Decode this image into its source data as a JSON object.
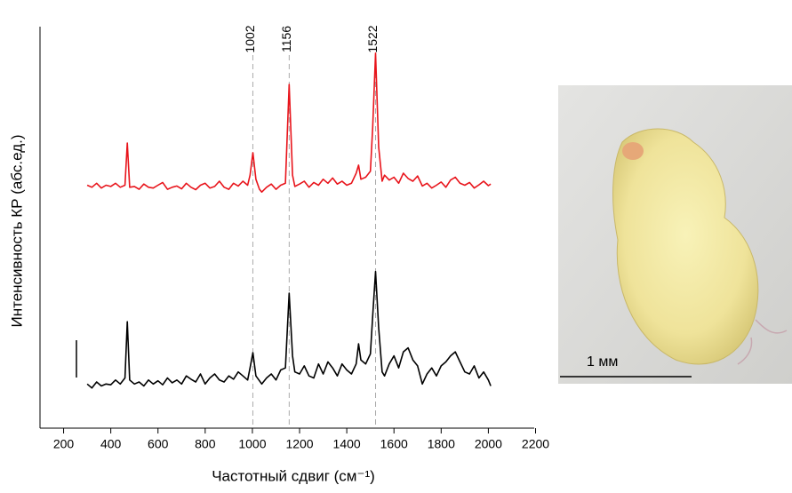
{
  "chart_data": {
    "type": "line",
    "xlabel": "Частотный сдвиг (см⁻¹)",
    "ylabel": "Интенсивность КР (абс.ед.)",
    "xlim": [
      100,
      2200
    ],
    "xticks": [
      200,
      400,
      600,
      800,
      1000,
      1200,
      1400,
      1600,
      1800,
      2000,
      2200
    ],
    "ylim": [
      0,
      100
    ],
    "grid": false,
    "peaks": [
      1002,
      1156,
      1522
    ],
    "x": [
      300,
      320,
      340,
      360,
      380,
      400,
      420,
      440,
      460,
      470,
      480,
      500,
      520,
      540,
      560,
      580,
      600,
      620,
      640,
      660,
      680,
      700,
      720,
      740,
      760,
      780,
      800,
      820,
      840,
      860,
      880,
      900,
      920,
      940,
      960,
      980,
      990,
      1002,
      1015,
      1030,
      1040,
      1060,
      1080,
      1100,
      1120,
      1140,
      1156,
      1170,
      1180,
      1200,
      1220,
      1240,
      1260,
      1280,
      1300,
      1320,
      1340,
      1360,
      1380,
      1400,
      1420,
      1440,
      1450,
      1460,
      1480,
      1500,
      1510,
      1522,
      1535,
      1550,
      1560,
      1580,
      1600,
      1620,
      1640,
      1660,
      1680,
      1700,
      1720,
      1740,
      1760,
      1780,
      1800,
      1820,
      1840,
      1860,
      1880,
      1900,
      1920,
      1940,
      1960,
      1980,
      2000,
      2010
    ],
    "series": [
      {
        "color": "#e8141b",
        "values": [
          60.5,
          60,
          61,
          59.8,
          60.5,
          60.2,
          61,
          60,
          60.5,
          71,
          60,
          60.2,
          59.5,
          60.8,
          60,
          59.8,
          60.5,
          61.2,
          59.5,
          60,
          60.3,
          59.6,
          61,
          60,
          59.4,
          60.5,
          61,
          59.8,
          60.2,
          61.5,
          60,
          59.5,
          61,
          60.3,
          61.5,
          60.5,
          63,
          68.6,
          62,
          59.5,
          58.8,
          60,
          60.8,
          59.5,
          60.5,
          61,
          85.6,
          63,
          60.2,
          60.8,
          61.5,
          60,
          61.2,
          60.5,
          62,
          61,
          62.3,
          60.8,
          61.5,
          60.5,
          61,
          63.5,
          65.5,
          62,
          62.5,
          64,
          75,
          93.4,
          70,
          61.5,
          63,
          61.8,
          62.5,
          61,
          63.5,
          62.2,
          61.5,
          62.8,
          60.3,
          61,
          59.8,
          60.5,
          61.3,
          60,
          61.8,
          62.5,
          61,
          60.5,
          61.2,
          59.8,
          60.6,
          61.5,
          60.4,
          60.8
        ]
      },
      {
        "color": "#000000",
        "values": [
          11,
          10,
          11.5,
          10.5,
          11,
          10.8,
          12,
          11,
          12.5,
          26.5,
          12,
          11,
          11.5,
          10.5,
          12,
          11,
          11.8,
          10.8,
          12.5,
          11.3,
          12,
          11,
          13,
          12.2,
          11.5,
          13.5,
          11,
          12.5,
          13.5,
          12,
          11.5,
          13,
          12.2,
          14,
          13,
          12,
          15,
          18.8,
          13,
          11.8,
          11,
          12.5,
          13.5,
          12,
          14.5,
          15,
          33.6,
          18,
          14,
          13.5,
          15.5,
          13,
          12.5,
          16,
          13.5,
          16.5,
          15,
          13,
          16,
          14.5,
          13.5,
          16,
          21,
          17,
          16,
          18.5,
          28,
          39,
          25,
          14,
          13,
          16,
          18,
          15,
          19,
          20,
          17,
          15.5,
          11,
          13.5,
          15,
          13,
          15.5,
          16.5,
          18,
          19,
          16.5,
          14,
          13.5,
          15.5,
          12.5,
          14,
          12,
          10.5
        ]
      }
    ]
  },
  "image": {
    "scale_label": "1 мм"
  }
}
